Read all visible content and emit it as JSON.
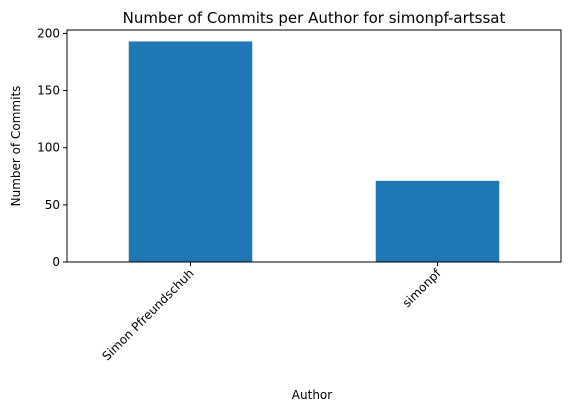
{
  "chart_data": {
    "type": "bar",
    "title": "Number of Commits per Author for simonpf-artssat",
    "xlabel": "Author",
    "ylabel": "Number of Commits",
    "categories": [
      "Simon Pfreundschuh",
      "simonpf"
    ],
    "values": [
      193,
      71
    ],
    "ylim": [
      0,
      203
    ],
    "yticks": [
      0,
      50,
      100,
      150,
      200
    ],
    "grid": false,
    "legend": "none",
    "bar_color": "#1f77b4"
  }
}
